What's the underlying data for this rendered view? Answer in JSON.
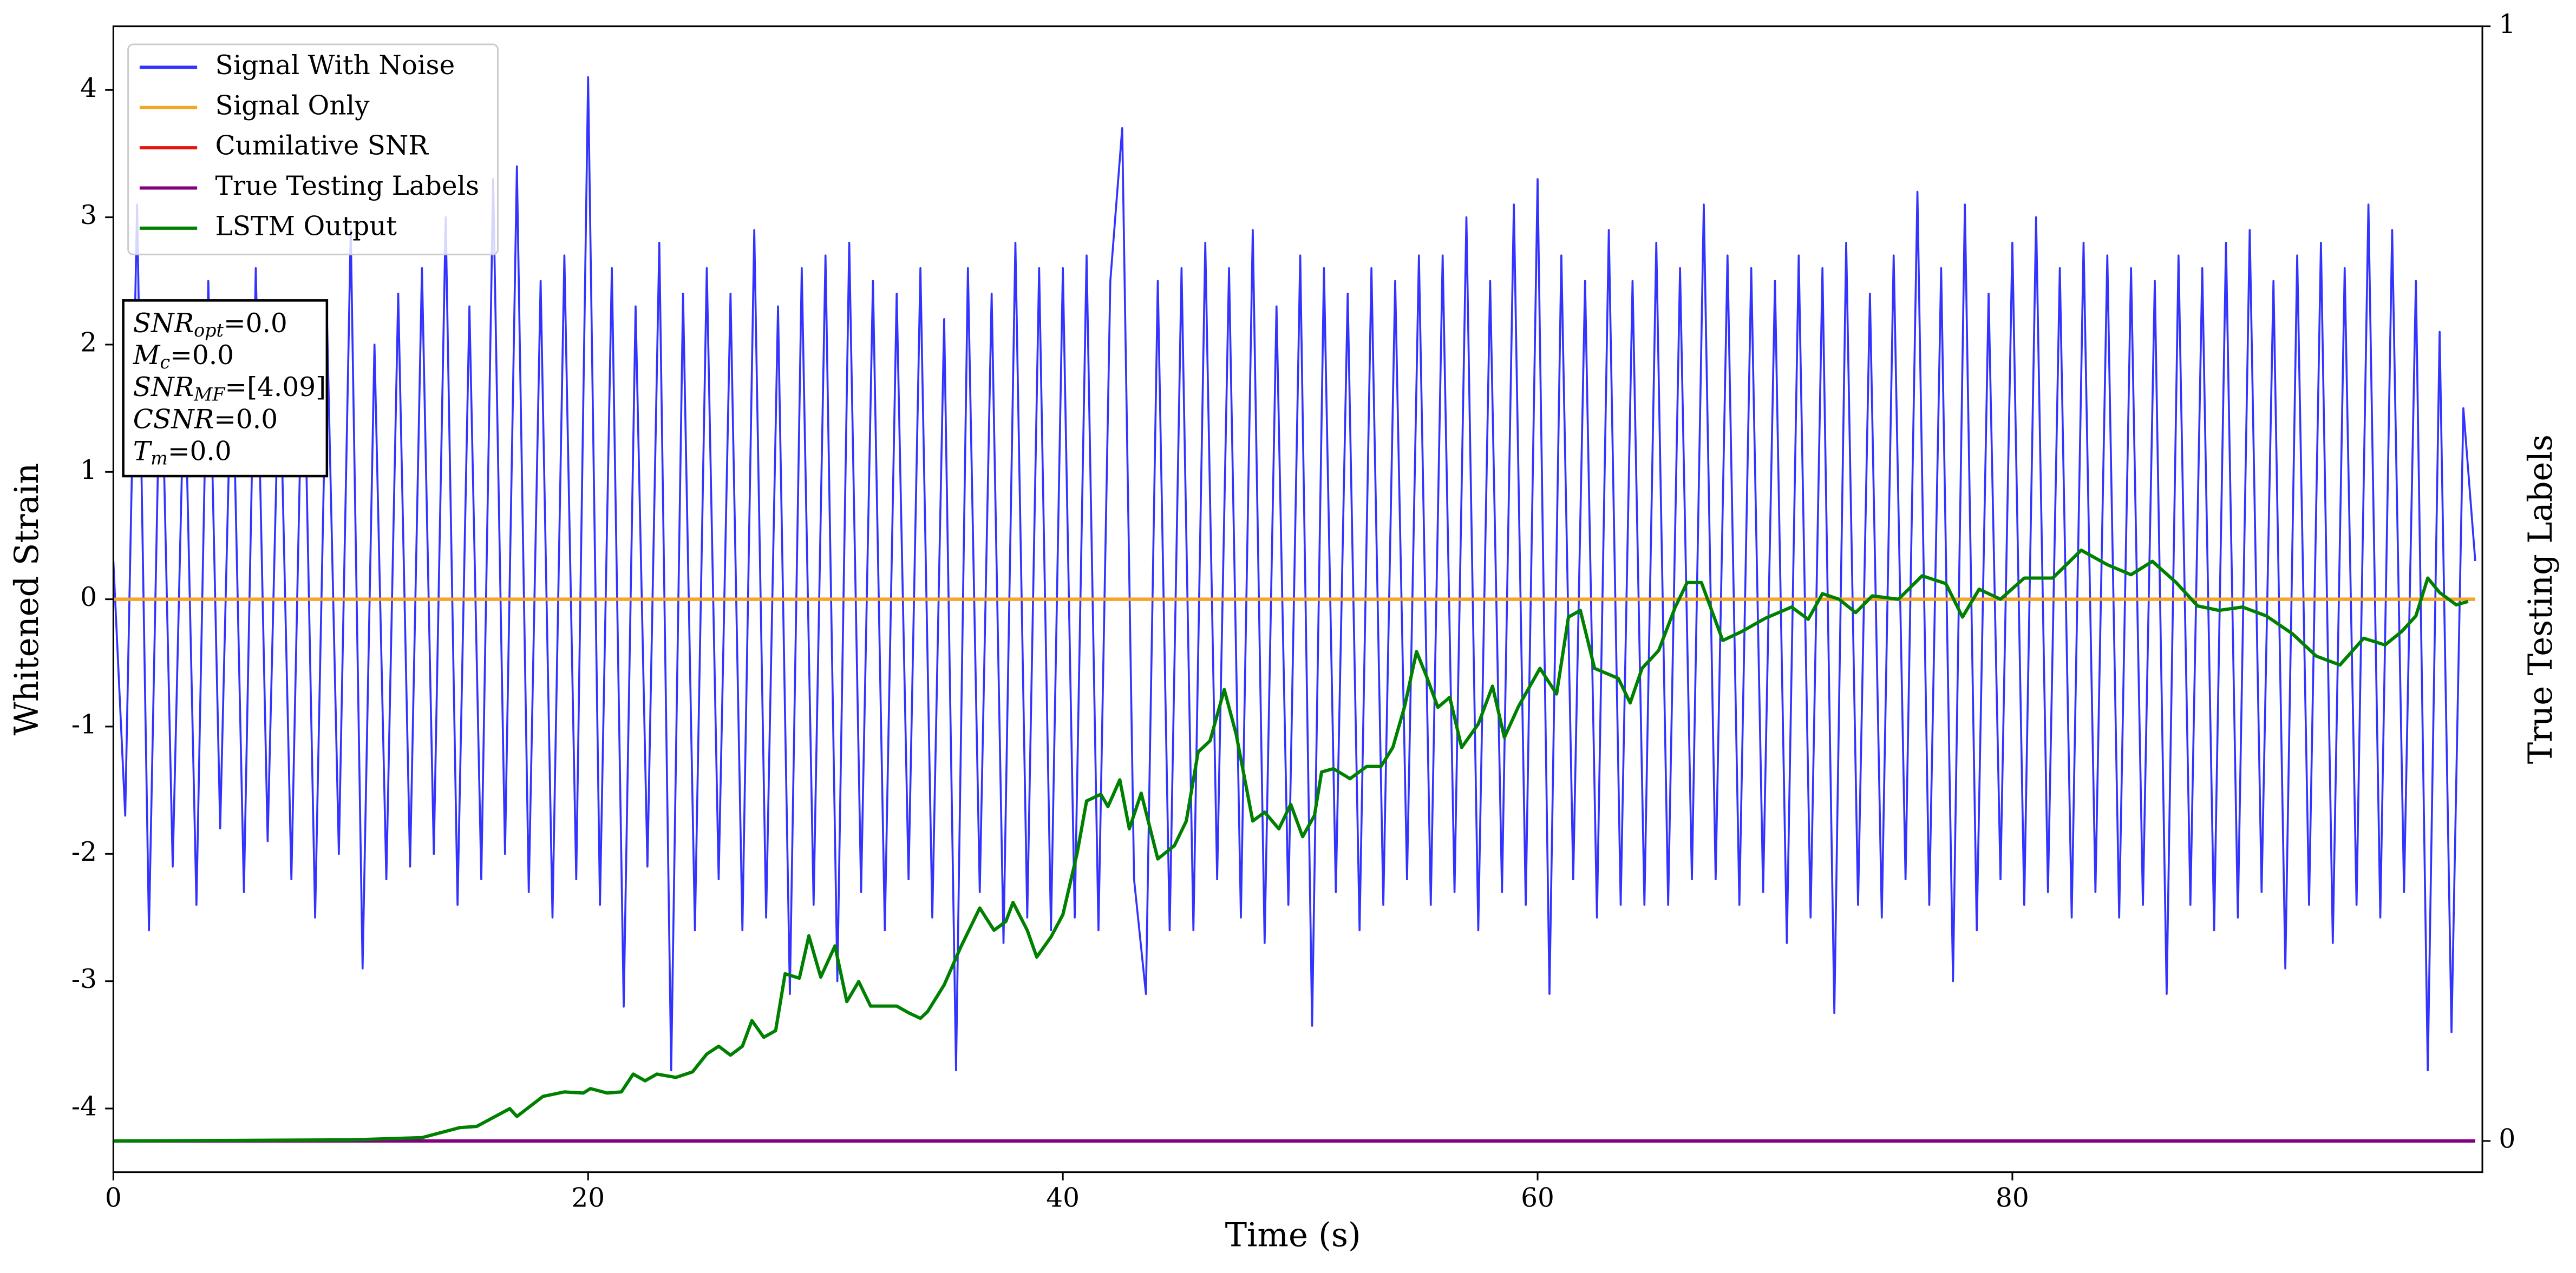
{
  "chart_data": {
    "type": "line",
    "xlabel": "Time (s)",
    "ylabel": "Whitened Strain",
    "y2label": "True Testing Labels",
    "xlim": [
      0,
      99.8
    ],
    "xticks": [
      0,
      20,
      40,
      60,
      80
    ],
    "ylim": [
      -4.5,
      4.5
    ],
    "yticks": [
      -4,
      -3,
      -2,
      -1,
      0,
      1,
      2,
      3,
      4
    ],
    "y2lim": [
      -0.028,
      1
    ],
    "y2ticks": [
      0,
      1
    ],
    "legend": "upper left",
    "series": [
      {
        "name": "Signal With Noise",
        "color": "#3333ff",
        "x": [
          0,
          0.5,
          1,
          1.5,
          2,
          2.5,
          3,
          3.5,
          4,
          4.5,
          5,
          5.5,
          6,
          6.5,
          7,
          7.5,
          8,
          8.5,
          9,
          9.5,
          10,
          10.5,
          11,
          11.5,
          12,
          12.5,
          13,
          13.5,
          14,
          14.5,
          15,
          15.5,
          16,
          16.5,
          17,
          17.5,
          18,
          18.5,
          19,
          19.5,
          20,
          20.5,
          21,
          21.5,
          22,
          22.5,
          23,
          23.5,
          24,
          24.5,
          25,
          25.5,
          26,
          26.5,
          27,
          27.5,
          28,
          28.5,
          29,
          29.5,
          30,
          30.5,
          31,
          31.5,
          32,
          32.5,
          33,
          33.5,
          34,
          34.5,
          35,
          35.5,
          36,
          36.5,
          37,
          37.5,
          38,
          38.5,
          39,
          39.5,
          40,
          40.5,
          41,
          41.5,
          42,
          42.5,
          43,
          43.5,
          44,
          44.5,
          45,
          45.5,
          46,
          46.5,
          47,
          47.5,
          48,
          48.5,
          49,
          49.5,
          50,
          50.5,
          51,
          51.5,
          52,
          52.5,
          53,
          53.5,
          54,
          54.5,
          55,
          55.5,
          56,
          56.5,
          57,
          57.5,
          58,
          58.5,
          59,
          59.5,
          60,
          60.5,
          61,
          61.5,
          62,
          62.5,
          63,
          63.5,
          64,
          64.5,
          65,
          65.5,
          66,
          66.5,
          67,
          67.5,
          68,
          68.5,
          69,
          69.5,
          70,
          70.5,
          71,
          71.5,
          72,
          72.5,
          73,
          73.5,
          74,
          74.5,
          75,
          75.5,
          76,
          76.5,
          77,
          77.5,
          78,
          78.5,
          79,
          79.5,
          80,
          80.5,
          81,
          81.5,
          82,
          82.5,
          83,
          83.5,
          84,
          84.5,
          85,
          85.5,
          86,
          86.5,
          87,
          87.5,
          88,
          88.5,
          89,
          89.5,
          90,
          90.5,
          91,
          91.5,
          92,
          92.5,
          93,
          93.5,
          94,
          94.5,
          95,
          95.5,
          96,
          96.5,
          97,
          97.5,
          98,
          98.5,
          99,
          99.5
        ],
        "values": [
          0.3,
          -1.7,
          3.1,
          -2.6,
          2.2,
          -2.1,
          1.9,
          -2.4,
          2.5,
          -1.8,
          2.1,
          -2.3,
          2.6,
          -1.9,
          2.0,
          -2.2,
          2.3,
          -2.5,
          2.2,
          -2.0,
          2.9,
          -2.9,
          2.0,
          -2.2,
          2.4,
          -2.1,
          2.6,
          -2.0,
          3.0,
          -2.4,
          2.3,
          -2.2,
          3.3,
          -2.0,
          3.4,
          -2.3,
          2.5,
          -2.5,
          2.7,
          -2.2,
          4.1,
          -2.4,
          2.6,
          -3.2,
          2.3,
          -2.1,
          2.8,
          -3.7,
          2.4,
          -2.6,
          2.6,
          -2.2,
          2.4,
          -2.6,
          2.9,
          -2.5,
          2.3,
          -3.1,
          2.6,
          -2.4,
          2.7,
          -3.0,
          2.8,
          -2.3,
          2.5,
          -2.6,
          2.4,
          -2.2,
          2.6,
          -2.5,
          2.2,
          -3.7,
          2.6,
          -2.3,
          2.4,
          -2.7,
          2.8,
          -2.5,
          2.6,
          -2.6,
          2.6,
          -2.5,
          2.7,
          -2.6,
          2.5,
          3.7,
          -2.2,
          -3.1,
          2.5,
          -2.6,
          2.6,
          -2.6,
          2.8,
          -2.2,
          2.6,
          -2.5,
          2.9,
          -2.7,
          2.3,
          -2.4,
          2.7,
          -3.35,
          2.6,
          -2.3,
          2.4,
          -2.6,
          2.6,
          -2.4,
          2.5,
          -2.2,
          2.7,
          -2.4,
          2.7,
          -2.3,
          3.0,
          -2.6,
          2.5,
          -2.3,
          3.1,
          -2.4,
          3.3,
          -3.1,
          2.7,
          -2.2,
          2.5,
          -2.5,
          2.9,
          -2.4,
          2.5,
          -2.4,
          2.8,
          -2.4,
          2.6,
          -2.2,
          3.1,
          -2.2,
          2.7,
          -2.4,
          2.6,
          -2.3,
          2.5,
          -2.7,
          2.7,
          -2.5,
          2.6,
          -3.25,
          2.8,
          -2.4,
          2.4,
          -2.5,
          2.7,
          -2.2,
          3.2,
          -2.4,
          2.6,
          -3.0,
          3.1,
          -2.6,
          2.4,
          -2.2,
          2.8,
          -2.4,
          3.0,
          -2.3,
          2.6,
          -2.5,
          2.8,
          -2.3,
          2.7,
          -2.5,
          2.6,
          -2.4,
          2.5,
          -3.1,
          2.7,
          -2.4,
          2.6,
          -2.6,
          2.8,
          -2.5,
          2.9,
          -2.3,
          2.5,
          -2.9,
          2.7,
          -2.4,
          2.8,
          -2.7,
          2.6,
          -2.4,
          3.1,
          -2.5,
          2.9,
          -2.3,
          2.5,
          -3.7,
          2.1,
          -3.4,
          1.5,
          0.3
        ]
      },
      {
        "name": "Signal Only",
        "color": "#f5a623",
        "x": [
          0,
          99.5
        ],
        "values": [
          0,
          0
        ]
      },
      {
        "name": "Cumilative SNR",
        "color": "#e8140c",
        "x": [
          0,
          99.5
        ],
        "values": [
          0,
          0
        ]
      },
      {
        "name": "True Testing Labels",
        "color": "#800080",
        "axis": "y2",
        "x": [
          0,
          99.5
        ],
        "values": [
          0,
          0
        ]
      },
      {
        "name": "LSTM Output",
        "color": "#008000",
        "axis": "y2",
        "x": [
          0,
          10,
          13,
          14.6,
          15.3,
          16.7,
          17,
          18.1,
          19,
          19.8,
          20.1,
          20.8,
          21.4,
          21.9,
          22.4,
          22.9,
          23.7,
          24.4,
          25,
          25.5,
          26,
          26.5,
          26.9,
          27.4,
          27.9,
          28.3,
          28.9,
          29.3,
          29.8,
          30.4,
          30.9,
          31.4,
          31.9,
          33,
          33.5,
          34,
          34.3,
          35,
          35.7,
          36.5,
          37.1,
          37.6,
          37.9,
          38.5,
          38.9,
          39.5,
          40,
          40.6,
          41,
          41.6,
          41.9,
          42.4,
          42.8,
          43.3,
          44,
          44.7,
          45.2,
          45.7,
          46.2,
          46.8,
          47.3,
          48,
          48.5,
          49.1,
          49.6,
          50.1,
          50.6,
          50.9,
          51.4,
          52.1,
          52.8,
          53.4,
          53.9,
          54.4,
          54.9,
          55.3,
          55.8,
          56.3,
          56.8,
          57.5,
          58.1,
          58.6,
          59.2,
          60.1,
          60.8,
          61.3,
          61.8,
          62.4,
          63.4,
          63.9,
          64.4,
          65.1,
          65.8,
          66.3,
          66.9,
          67.8,
          68.6,
          69.6,
          70.7,
          71.4,
          72,
          72.7,
          73.4,
          74.1,
          75.2,
          76.2,
          77.2,
          77.9,
          78.6,
          79.5,
          80.5,
          81.7,
          82.9,
          84,
          85,
          85.9,
          86.9,
          87.8,
          88.7,
          89.7,
          90.7,
          91.8,
          92.8,
          93.8,
          94.8,
          95.7,
          96.4,
          97,
          97.5,
          98,
          98.7,
          99.2
        ],
        "values": [
          0,
          0.001,
          0.003,
          0.012,
          0.013,
          0.029,
          0.022,
          0.04,
          0.044,
          0.043,
          0.047,
          0.043,
          0.044,
          0.06,
          0.054,
          0.06,
          0.057,
          0.062,
          0.078,
          0.085,
          0.077,
          0.085,
          0.108,
          0.093,
          0.099,
          0.15,
          0.146,
          0.184,
          0.147,
          0.175,
          0.125,
          0.143,
          0.121,
          0.121,
          0.115,
          0.11,
          0.116,
          0.14,
          0.174,
          0.209,
          0.189,
          0.197,
          0.214,
          0.189,
          0.165,
          0.183,
          0.203,
          0.258,
          0.305,
          0.311,
          0.3,
          0.324,
          0.28,
          0.312,
          0.253,
          0.265,
          0.287,
          0.349,
          0.359,
          0.405,
          0.365,
          0.287,
          0.295,
          0.28,
          0.302,
          0.273,
          0.292,
          0.331,
          0.334,
          0.325,
          0.336,
          0.336,
          0.353,
          0.39,
          0.439,
          0.418,
          0.389,
          0.398,
          0.353,
          0.374,
          0.408,
          0.362,
          0.39,
          0.424,
          0.401,
          0.47,
          0.476,
          0.424,
          0.415,
          0.393,
          0.424,
          0.44,
          0.479,
          0.501,
          0.501,
          0.449,
          0.457,
          0.469,
          0.479,
          0.468,
          0.491,
          0.486,
          0.474,
          0.489,
          0.486,
          0.507,
          0.5,
          0.47,
          0.495,
          0.486,
          0.505,
          0.505,
          0.53,
          0.517,
          0.508,
          0.52,
          0.501,
          0.48,
          0.476,
          0.479,
          0.471,
          0.455,
          0.435,
          0.427,
          0.451,
          0.445,
          0.457,
          0.471,
          0.505,
          0.492,
          0.481,
          0.484
        ]
      }
    ],
    "annotation": [
      {
        "main": "SNR",
        "sub": "opt",
        "rest": "=0.0"
      },
      {
        "main": "M",
        "sub": "c",
        "rest": "=0.0"
      },
      {
        "main": "SNR",
        "sub": "MF",
        "rest": "=[4.09]"
      },
      {
        "main": "CSNR",
        "rest": "=0.0"
      },
      {
        "main": "T",
        "sub": "m",
        "rest": "=0.0"
      }
    ]
  }
}
